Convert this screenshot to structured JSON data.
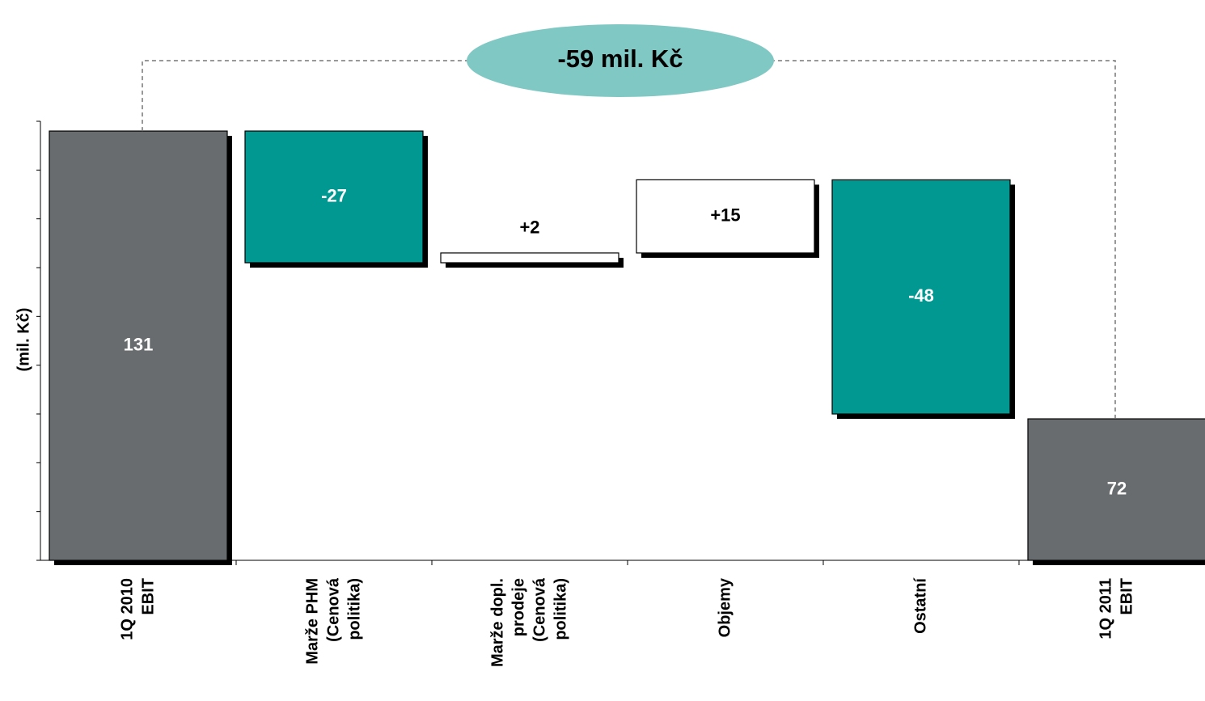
{
  "chart_data": {
    "type": "waterfall",
    "annotation": "-59 mil. Kč",
    "y_axis_label": "(mil. Kč)",
    "categories": [
      [
        "1Q 2010",
        "EBIT"
      ],
      [
        "Marže PHM",
        "(Cenová",
        "politika)"
      ],
      [
        "Marže dopl.",
        "prodeje",
        "(Cenová",
        "politika)"
      ],
      [
        "Objemy"
      ],
      [
        "Ostatní"
      ],
      [
        "1Q 2011",
        "EBIT"
      ]
    ],
    "measures": [
      "absolute",
      "relative",
      "relative",
      "relative",
      "relative",
      "absolute"
    ],
    "values": [
      131,
      -27,
      2,
      15,
      -48,
      72
    ],
    "value_labels": [
      "131",
      "-27",
      "+2",
      "+15",
      "-48",
      "72"
    ],
    "total_color": "#686c6e",
    "decrease_color": "#009890",
    "increase_color": "#ffffff",
    "ylim": [
      43,
      133
    ],
    "yticks": [
      43,
      53,
      63,
      73,
      83,
      93,
      103,
      113,
      123,
      133
    ]
  }
}
